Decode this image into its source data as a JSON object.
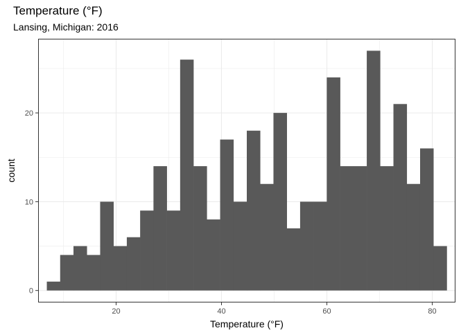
{
  "chart_data": {
    "type": "histogram",
    "title": "Temperature (°F)",
    "subtitle": "Lansing, Michigan: 2016",
    "xlabel": "Temperature (°F)",
    "ylabel": "count",
    "xlim": [
      5.2,
      84.4
    ],
    "ylim": [
      -1.35,
      28.35
    ],
    "x_ticks": [
      20,
      40,
      60,
      80
    ],
    "y_ticks": [
      0,
      10,
      20
    ],
    "grid": true,
    "bin_width": 2.53,
    "bin_start": 6.85,
    "counts": [
      1,
      4,
      5,
      4,
      10,
      5,
      6,
      9,
      14,
      9,
      26,
      14,
      8,
      17,
      10,
      18,
      12,
      20,
      7,
      10,
      10,
      24,
      14,
      14,
      27,
      14,
      21,
      12,
      16,
      5
    ],
    "bar_color": "#595959"
  }
}
